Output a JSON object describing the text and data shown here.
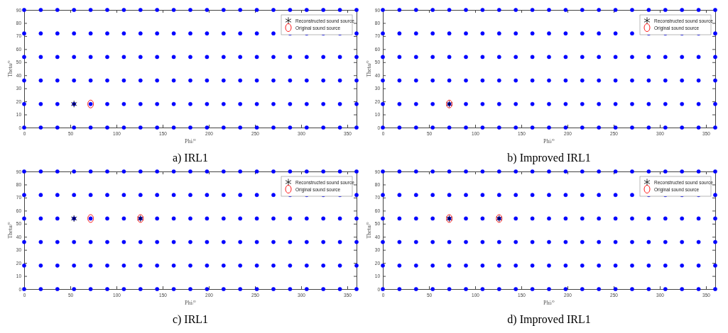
{
  "chart_data": [
    {
      "type": "scatter",
      "title": "a) IRL1",
      "xlabel": "Phi/°",
      "ylabel": "Theta/°",
      "xlim": [
        0,
        360
      ],
      "ylim": [
        0,
        90
      ],
      "xticks": [
        0,
        50,
        100,
        150,
        200,
        250,
        300,
        350
      ],
      "yticks": [
        0,
        10,
        20,
        30,
        40,
        50,
        60,
        70,
        80,
        90
      ],
      "grid": false,
      "legend": "top right",
      "series": [
        {
          "color": "#0000ff",
          "marker": "circle",
          "x": [
            0,
            18,
            36,
            54,
            72,
            90,
            108,
            126,
            144,
            162,
            180,
            198,
            216,
            234,
            252,
            270,
            288,
            306,
            324,
            342,
            360,
            0,
            18,
            36,
            54,
            72,
            90,
            108,
            126,
            144,
            162,
            180,
            198,
            216,
            234,
            252,
            270,
            288,
            306,
            324,
            342,
            360,
            0,
            18,
            36,
            54,
            72,
            90,
            108,
            126,
            144,
            162,
            180,
            198,
            216,
            234,
            252,
            270,
            288,
            306,
            324,
            342,
            360,
            0,
            18,
            36,
            54,
            72,
            90,
            108,
            126,
            144,
            162,
            180,
            198,
            216,
            234,
            252,
            270,
            288,
            306,
            324,
            342,
            360,
            0,
            18,
            36,
            54,
            72,
            90,
            108,
            126,
            144,
            162,
            180,
            198,
            216,
            234,
            252,
            270,
            288,
            306,
            324,
            342,
            360,
            0,
            18,
            36,
            54,
            72,
            90,
            108,
            126,
            144,
            162,
            180,
            198,
            216,
            234,
            252,
            270,
            288,
            306,
            324,
            342,
            360
          ],
          "values": [
            0,
            0,
            0,
            0,
            0,
            0,
            0,
            0,
            0,
            0,
            0,
            0,
            0,
            0,
            0,
            0,
            0,
            0,
            0,
            0,
            0,
            18,
            18,
            18,
            18,
            18,
            18,
            18,
            18,
            18,
            18,
            18,
            18,
            18,
            18,
            18,
            18,
            18,
            18,
            18,
            18,
            18,
            36,
            36,
            36,
            36,
            36,
            36,
            36,
            36,
            36,
            36,
            36,
            36,
            36,
            36,
            36,
            36,
            36,
            36,
            36,
            36,
            36,
            54,
            54,
            54,
            54,
            54,
            54,
            54,
            54,
            54,
            54,
            54,
            54,
            54,
            54,
            54,
            54,
            54,
            54,
            54,
            54,
            54,
            72,
            72,
            72,
            72,
            72,
            72,
            72,
            72,
            72,
            72,
            72,
            72,
            72,
            72,
            72,
            72,
            72,
            72,
            72,
            72,
            72,
            90,
            90,
            90,
            90,
            90,
            90,
            90,
            90,
            90,
            90,
            90,
            90,
            90,
            90,
            90,
            90,
            90,
            90,
            90,
            90,
            90
          ]
        },
        {
          "name": "Reconstructed sound source",
          "color": "#000000",
          "marker": "cross",
          "x": [
            54
          ],
          "values": [
            18
          ]
        },
        {
          "name": "Original sound source",
          "color": "#ff0000",
          "marker": "circle",
          "x": [
            72
          ],
          "values": [
            18
          ]
        }
      ]
    },
    {
      "type": "scatter",
      "title": "b) Improved IRL1",
      "xlabel": "Phi/°",
      "ylabel": "Theta/°",
      "xlim": [
        0,
        360
      ],
      "ylim": [
        0,
        90
      ],
      "xticks": [
        0,
        50,
        100,
        150,
        200,
        250,
        300,
        350
      ],
      "yticks": [
        0,
        10,
        20,
        30,
        40,
        50,
        60,
        70,
        80,
        90
      ],
      "grid": false,
      "legend": "top right",
      "series": [
        {
          "color": "#0000ff",
          "marker": "circle",
          "x": [
            0,
            18,
            36,
            54,
            72,
            90,
            108,
            126,
            144,
            162,
            180,
            198,
            216,
            234,
            252,
            270,
            288,
            306,
            324,
            342,
            360,
            0,
            18,
            36,
            54,
            72,
            90,
            108,
            126,
            144,
            162,
            180,
            198,
            216,
            234,
            252,
            270,
            288,
            306,
            324,
            342,
            360,
            0,
            18,
            36,
            54,
            72,
            90,
            108,
            126,
            144,
            162,
            180,
            198,
            216,
            234,
            252,
            270,
            288,
            306,
            324,
            342,
            360,
            0,
            18,
            36,
            54,
            72,
            90,
            108,
            126,
            144,
            162,
            180,
            198,
            216,
            234,
            252,
            270,
            288,
            306,
            324,
            342,
            360,
            0,
            18,
            36,
            54,
            72,
            90,
            108,
            126,
            144,
            162,
            180,
            198,
            216,
            234,
            252,
            270,
            288,
            306,
            324,
            342,
            360,
            0,
            18,
            36,
            54,
            72,
            90,
            108,
            126,
            144,
            162,
            180,
            198,
            216,
            234,
            252,
            270,
            288,
            306,
            324,
            342,
            360
          ],
          "values": [
            0,
            0,
            0,
            0,
            0,
            0,
            0,
            0,
            0,
            0,
            0,
            0,
            0,
            0,
            0,
            0,
            0,
            0,
            0,
            0,
            0,
            18,
            18,
            18,
            18,
            18,
            18,
            18,
            18,
            18,
            18,
            18,
            18,
            18,
            18,
            18,
            18,
            18,
            18,
            18,
            18,
            18,
            36,
            36,
            36,
            36,
            36,
            36,
            36,
            36,
            36,
            36,
            36,
            36,
            36,
            36,
            36,
            36,
            36,
            36,
            36,
            36,
            36,
            54,
            54,
            54,
            54,
            54,
            54,
            54,
            54,
            54,
            54,
            54,
            54,
            54,
            54,
            54,
            54,
            54,
            54,
            54,
            54,
            54,
            72,
            72,
            72,
            72,
            72,
            72,
            72,
            72,
            72,
            72,
            72,
            72,
            72,
            72,
            72,
            72,
            72,
            72,
            72,
            72,
            72,
            90,
            90,
            90,
            90,
            90,
            90,
            90,
            90,
            90,
            90,
            90,
            90,
            90,
            90,
            90,
            90,
            90,
            90,
            90,
            90,
            90
          ]
        },
        {
          "name": "Reconstructed sound source",
          "color": "#000000",
          "marker": "cross",
          "x": [
            72
          ],
          "values": [
            18
          ]
        },
        {
          "name": "Original sound source",
          "color": "#ff0000",
          "marker": "circle",
          "x": [
            72
          ],
          "values": [
            18
          ]
        }
      ]
    },
    {
      "type": "scatter",
      "title": "c) IRL1",
      "xlabel": "Phi/°",
      "ylabel": "Theta/°",
      "xlim": [
        0,
        360
      ],
      "ylim": [
        0,
        90
      ],
      "xticks": [
        0,
        50,
        100,
        150,
        200,
        250,
        300,
        350
      ],
      "yticks": [
        0,
        10,
        20,
        30,
        40,
        50,
        60,
        70,
        80,
        90
      ],
      "grid": false,
      "legend": "top right",
      "series": [
        {
          "color": "#0000ff",
          "marker": "circle",
          "x": [
            0,
            18,
            36,
            54,
            72,
            90,
            108,
            126,
            144,
            162,
            180,
            198,
            216,
            234,
            252,
            270,
            288,
            306,
            324,
            342,
            360,
            0,
            18,
            36,
            54,
            72,
            90,
            108,
            126,
            144,
            162,
            180,
            198,
            216,
            234,
            252,
            270,
            288,
            306,
            324,
            342,
            360,
            0,
            18,
            36,
            54,
            72,
            90,
            108,
            126,
            144,
            162,
            180,
            198,
            216,
            234,
            252,
            270,
            288,
            306,
            324,
            342,
            360,
            0,
            18,
            36,
            54,
            72,
            90,
            108,
            126,
            144,
            162,
            180,
            198,
            216,
            234,
            252,
            270,
            288,
            306,
            324,
            342,
            360,
            0,
            18,
            36,
            54,
            72,
            90,
            108,
            126,
            144,
            162,
            180,
            198,
            216,
            234,
            252,
            270,
            288,
            306,
            324,
            342,
            360,
            0,
            18,
            36,
            54,
            72,
            90,
            108,
            126,
            144,
            162,
            180,
            198,
            216,
            234,
            252,
            270,
            288,
            306,
            324,
            342,
            360
          ],
          "values": [
            0,
            0,
            0,
            0,
            0,
            0,
            0,
            0,
            0,
            0,
            0,
            0,
            0,
            0,
            0,
            0,
            0,
            0,
            0,
            0,
            0,
            18,
            18,
            18,
            18,
            18,
            18,
            18,
            18,
            18,
            18,
            18,
            18,
            18,
            18,
            18,
            18,
            18,
            18,
            18,
            18,
            18,
            36,
            36,
            36,
            36,
            36,
            36,
            36,
            36,
            36,
            36,
            36,
            36,
            36,
            36,
            36,
            36,
            36,
            36,
            36,
            36,
            36,
            54,
            54,
            54,
            54,
            54,
            54,
            54,
            54,
            54,
            54,
            54,
            54,
            54,
            54,
            54,
            54,
            54,
            54,
            54,
            54,
            54,
            72,
            72,
            72,
            72,
            72,
            72,
            72,
            72,
            72,
            72,
            72,
            72,
            72,
            72,
            72,
            72,
            72,
            72,
            72,
            72,
            72,
            90,
            90,
            90,
            90,
            90,
            90,
            90,
            90,
            90,
            90,
            90,
            90,
            90,
            90,
            90,
            90,
            90,
            90,
            90,
            90,
            90
          ]
        },
        {
          "name": "Reconstructed sound source",
          "color": "#000000",
          "marker": "cross",
          "x": [
            54,
            126
          ],
          "values": [
            54,
            54
          ]
        },
        {
          "name": "Original sound source",
          "color": "#ff0000",
          "marker": "circle",
          "x": [
            72,
            126
          ],
          "values": [
            54,
            54
          ]
        }
      ]
    },
    {
      "type": "scatter",
      "title": "d) Improved IRL1",
      "xlabel": "Phi/°",
      "ylabel": "Theta/°",
      "xlim": [
        0,
        360
      ],
      "ylim": [
        0,
        90
      ],
      "xticks": [
        0,
        50,
        100,
        150,
        200,
        250,
        300,
        350
      ],
      "yticks": [
        0,
        10,
        20,
        30,
        40,
        50,
        60,
        70,
        80,
        90
      ],
      "grid": false,
      "legend": "top right",
      "series": [
        {
          "color": "#0000ff",
          "marker": "circle",
          "x": [
            0,
            18,
            36,
            54,
            72,
            90,
            108,
            126,
            144,
            162,
            180,
            198,
            216,
            234,
            252,
            270,
            288,
            306,
            324,
            342,
            360,
            0,
            18,
            36,
            54,
            72,
            90,
            108,
            126,
            144,
            162,
            180,
            198,
            216,
            234,
            252,
            270,
            288,
            306,
            324,
            342,
            360,
            0,
            18,
            36,
            54,
            72,
            90,
            108,
            126,
            144,
            162,
            180,
            198,
            216,
            234,
            252,
            270,
            288,
            306,
            324,
            342,
            360,
            0,
            18,
            36,
            54,
            72,
            90,
            108,
            126,
            144,
            162,
            180,
            198,
            216,
            234,
            252,
            270,
            288,
            306,
            324,
            342,
            360,
            0,
            18,
            36,
            54,
            72,
            90,
            108,
            126,
            144,
            162,
            180,
            198,
            216,
            234,
            252,
            270,
            288,
            306,
            324,
            342,
            360,
            0,
            18,
            36,
            54,
            72,
            90,
            108,
            126,
            144,
            162,
            180,
            198,
            216,
            234,
            252,
            270,
            288,
            306,
            324,
            342,
            360
          ],
          "values": [
            0,
            0,
            0,
            0,
            0,
            0,
            0,
            0,
            0,
            0,
            0,
            0,
            0,
            0,
            0,
            0,
            0,
            0,
            0,
            0,
            0,
            18,
            18,
            18,
            18,
            18,
            18,
            18,
            18,
            18,
            18,
            18,
            18,
            18,
            18,
            18,
            18,
            18,
            18,
            18,
            18,
            18,
            36,
            36,
            36,
            36,
            36,
            36,
            36,
            36,
            36,
            36,
            36,
            36,
            36,
            36,
            36,
            36,
            36,
            36,
            36,
            36,
            36,
            54,
            54,
            54,
            54,
            54,
            54,
            54,
            54,
            54,
            54,
            54,
            54,
            54,
            54,
            54,
            54,
            54,
            54,
            54,
            54,
            54,
            72,
            72,
            72,
            72,
            72,
            72,
            72,
            72,
            72,
            72,
            72,
            72,
            72,
            72,
            72,
            72,
            72,
            72,
            72,
            72,
            72,
            90,
            90,
            90,
            90,
            90,
            90,
            90,
            90,
            90,
            90,
            90,
            90,
            90,
            90,
            90,
            90,
            90,
            90,
            90,
            90,
            90
          ]
        },
        {
          "name": "Reconstructed sound source",
          "color": "#000000",
          "marker": "cross",
          "x": [
            72,
            126
          ],
          "values": [
            54,
            54
          ]
        },
        {
          "name": "Original sound source",
          "color": "#ff0000",
          "marker": "circle",
          "x": [
            72,
            126
          ],
          "values": [
            54,
            54
          ]
        }
      ]
    }
  ]
}
